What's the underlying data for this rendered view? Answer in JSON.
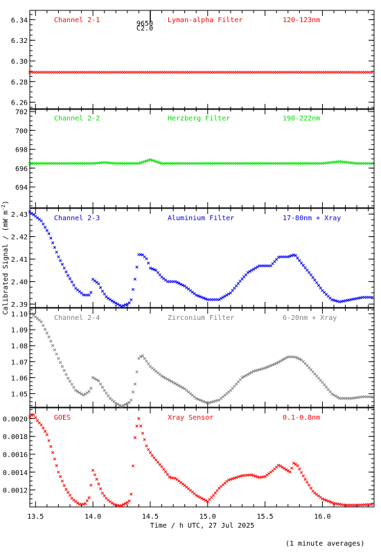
{
  "footnote": "(1 minute averages)",
  "ylabel_base": "Calibrated Signal / (mW m",
  "ylabel_exp": "-2",
  "ylabel_close": ")",
  "xlabel": "Time / h UTC, 27 Jul 2025",
  "marker_text": [
    "9650",
    "C2.0"
  ],
  "chart_data": [
    {
      "type": "scatter",
      "labels": [
        "Channel 2-1",
        "Lyman-alpha Filter",
        "120-123nm"
      ],
      "color": "#ff0000",
      "ylim": [
        6.253,
        6.349
      ],
      "yticks": [
        6.26,
        6.28,
        6.3,
        6.32,
        6.34
      ],
      "ytick_labels": [
        "6.26",
        "6.28",
        "6.30",
        "6.32",
        "6.34"
      ],
      "series": [
        {
          "x": [
            13.45,
            13.6,
            13.8,
            14.0,
            14.2,
            14.4,
            14.6,
            14.8,
            15.0,
            15.2,
            15.4,
            15.6,
            15.8,
            16.0,
            16.2,
            16.45
          ],
          "y": [
            6.289,
            6.289,
            6.289,
            6.289,
            6.289,
            6.289,
            6.289,
            6.289,
            6.289,
            6.289,
            6.289,
            6.289,
            6.289,
            6.289,
            6.289,
            6.289
          ]
        }
      ]
    },
    {
      "type": "scatter",
      "labels": [
        "Channel 2-2",
        "Herzberg Filter",
        "190-222nm"
      ],
      "color": "#00e000",
      "ylim": [
        691.8,
        702.3
      ],
      "yticks": [
        694,
        696,
        698,
        700,
        702
      ],
      "ytick_labels": [
        "694",
        "696",
        "698",
        "700",
        "702"
      ],
      "series": [
        {
          "x": [
            13.45,
            13.6,
            13.8,
            14.0,
            14.1,
            14.2,
            14.4,
            14.5,
            14.6,
            14.8,
            15.0,
            15.2,
            15.4,
            15.6,
            15.8,
            16.0,
            16.15,
            16.3,
            16.45
          ],
          "y": [
            696.5,
            696.5,
            696.5,
            696.5,
            696.6,
            696.5,
            696.5,
            696.9,
            696.5,
            696.5,
            696.5,
            696.5,
            696.5,
            696.5,
            696.5,
            696.5,
            696.7,
            696.5,
            696.5
          ]
        }
      ]
    },
    {
      "type": "scatter",
      "labels": [
        "Channel 2-3",
        "Aluminium Filter",
        "17-80nm + Xray"
      ],
      "color": "#0000ee",
      "ylim": [
        2.3885,
        2.4325
      ],
      "yticks": [
        2.39,
        2.4,
        2.41,
        2.42,
        2.43
      ],
      "ytick_labels": [
        "2.39",
        "2.40",
        "2.41",
        "2.42",
        "2.43"
      ],
      "series": [
        {
          "x": [
            13.45,
            13.55,
            13.62,
            13.7,
            13.78,
            13.85,
            13.92,
            13.98,
            14.0,
            14.05,
            14.08,
            14.12,
            14.18,
            14.25,
            14.3,
            14.33,
            14.37,
            14.4,
            14.43,
            14.47,
            14.5,
            14.55,
            14.6,
            14.65,
            14.72,
            14.8,
            14.9,
            15.0,
            15.1,
            15.2,
            15.28,
            15.35,
            15.45,
            15.55,
            15.62,
            15.7,
            15.76,
            15.82,
            15.9,
            16.0,
            16.08,
            16.15,
            16.25,
            16.35,
            16.45
          ],
          "y": [
            2.431,
            2.427,
            2.421,
            2.411,
            2.403,
            2.397,
            2.394,
            2.394,
            2.401,
            2.399,
            2.396,
            2.393,
            2.391,
            2.389,
            2.39,
            2.391,
            2.402,
            2.412,
            2.412,
            2.41,
            2.406,
            2.405,
            2.402,
            2.4,
            2.4,
            2.398,
            2.394,
            2.392,
            2.392,
            2.395,
            2.4,
            2.404,
            2.407,
            2.407,
            2.411,
            2.411,
            2.412,
            2.408,
            2.403,
            2.396,
            2.392,
            2.391,
            2.392,
            2.393,
            2.393
          ]
        }
      ]
    },
    {
      "type": "scatter",
      "labels": [
        "Channel 2-4",
        "Zirconium Filter",
        "6-20nm + Xray"
      ],
      "color": "#808080",
      "ylim": [
        1.0415,
        1.1035
      ],
      "yticks": [
        1.05,
        1.06,
        1.07,
        1.08,
        1.09,
        1.1
      ],
      "ytick_labels": [
        "1.05",
        "1.06",
        "1.07",
        "1.08",
        "1.09",
        "1.10"
      ],
      "series": [
        {
          "x": [
            13.45,
            13.55,
            13.62,
            13.7,
            13.78,
            13.85,
            13.92,
            13.98,
            14.0,
            14.05,
            14.1,
            14.15,
            14.2,
            14.25,
            14.33,
            14.37,
            14.4,
            14.43,
            14.47,
            14.5,
            14.55,
            14.6,
            14.7,
            14.8,
            14.9,
            15.0,
            15.1,
            15.2,
            15.3,
            15.4,
            15.5,
            15.6,
            15.7,
            15.76,
            15.82,
            15.9,
            16.0,
            16.08,
            16.15,
            16.25,
            16.35,
            16.45
          ],
          "y": [
            1.101,
            1.095,
            1.085,
            1.072,
            1.06,
            1.052,
            1.049,
            1.052,
            1.06,
            1.058,
            1.052,
            1.047,
            1.044,
            1.042,
            1.045,
            1.057,
            1.072,
            1.074,
            1.07,
            1.067,
            1.064,
            1.061,
            1.057,
            1.053,
            1.047,
            1.044,
            1.046,
            1.052,
            1.06,
            1.064,
            1.066,
            1.069,
            1.073,
            1.073,
            1.071,
            1.065,
            1.057,
            1.05,
            1.047,
            1.047,
            1.048,
            1.048
          ]
        }
      ]
    },
    {
      "type": "scatter",
      "labels": [
        "GOES",
        "Xray Sensor",
        "0.1-0.8nm"
      ],
      "color": "#ff0000",
      "ylim": [
        0.00101,
        0.00212
      ],
      "yticks": [
        0.0012,
        0.0014,
        0.0016,
        0.0018,
        0.002
      ],
      "ytick_labels": [
        "0.0012",
        "0.0014",
        "0.0016",
        "0.0018",
        "0.0020"
      ],
      "series": [
        {
          "x": [
            13.45,
            13.48,
            13.52,
            13.55,
            13.6,
            13.65,
            13.7,
            13.76,
            13.82,
            13.88,
            13.93,
            13.97,
            14.0,
            14.04,
            14.08,
            14.12,
            14.18,
            14.24,
            14.3,
            14.33,
            14.37,
            14.4,
            14.43,
            14.47,
            14.52,
            14.6,
            14.67,
            14.72,
            14.8,
            14.9,
            15.0,
            15.05,
            15.1,
            15.18,
            15.25,
            15.3,
            15.38,
            15.45,
            15.5,
            15.57,
            15.62,
            15.68,
            15.72,
            15.75,
            15.78,
            15.85,
            15.92,
            16.0,
            16.1,
            16.2,
            16.3,
            16.45
          ],
          "y": [
            0.00202,
            0.00205,
            0.00197,
            0.00193,
            0.00182,
            0.00162,
            0.0014,
            0.00122,
            0.0011,
            0.00104,
            0.00104,
            0.00112,
            0.00142,
            0.0013,
            0.00117,
            0.0011,
            0.00104,
            0.00102,
            0.00106,
            0.00109,
            0.00185,
            0.002,
            0.00185,
            0.00168,
            0.00158,
            0.00146,
            0.00134,
            0.00133,
            0.00125,
            0.00114,
            0.00107,
            0.00114,
            0.00122,
            0.00131,
            0.00134,
            0.00136,
            0.00137,
            0.00134,
            0.00135,
            0.00142,
            0.00148,
            0.00143,
            0.0014,
            0.0015,
            0.00148,
            0.00132,
            0.00118,
            0.0011,
            0.00105,
            0.00103,
            0.00103,
            0.00104
          ]
        }
      ]
    }
  ],
  "x_axis": {
    "xlim": [
      13.45,
      16.45
    ],
    "ticks": [
      13.5,
      14.0,
      14.5,
      15.0,
      15.5,
      16.0
    ],
    "tick_labels": [
      "13.5",
      "14.0",
      "14.5",
      "15.0",
      "15.5",
      "16.0"
    ],
    "minor_step": 0.1
  },
  "event_marker_x": 14.5
}
